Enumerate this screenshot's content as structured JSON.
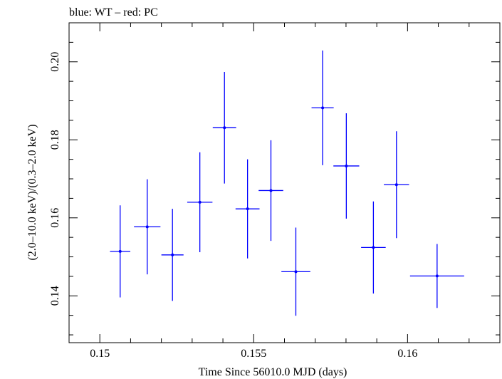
{
  "chart_data": {
    "type": "scatter",
    "title": "blue: WT – red: PC",
    "xlabel": "Time Since 56010.0 MJD (days)",
    "ylabel": "(2.0–10.0 keV)/(0.3–2.0 keV)",
    "xlim": [
      0.149,
      0.163
    ],
    "ylim": [
      0.128,
      0.21
    ],
    "xticks": [
      {
        "value": 0.15,
        "label": "0.15"
      },
      {
        "value": 0.155,
        "label": "0.155"
      },
      {
        "value": 0.16,
        "label": "0.16"
      }
    ],
    "yticks": [
      {
        "value": 0.14,
        "label": "0.14"
      },
      {
        "value": 0.16,
        "label": "0.16"
      },
      {
        "value": 0.18,
        "label": "0.18"
      },
      {
        "value": 0.2,
        "label": "0.20"
      }
    ],
    "grid": false,
    "series": [
      {
        "color": "#0000ff",
        "points": [
          {
            "x": 0.15066,
            "xerr": 0.00033,
            "y": 0.1514,
            "yerr": 0.0118
          },
          {
            "x": 0.15154,
            "xerr": 0.00043,
            "y": 0.1577,
            "yerr": 0.0122
          },
          {
            "x": 0.15236,
            "xerr": 0.00036,
            "y": 0.1505,
            "yerr": 0.0118
          },
          {
            "x": 0.15325,
            "xerr": 0.00041,
            "y": 0.164,
            "yerr": 0.0128
          },
          {
            "x": 0.15405,
            "xerr": 0.00038,
            "y": 0.1831,
            "yerr": 0.0143
          },
          {
            "x": 0.1548,
            "xerr": 0.00039,
            "y": 0.1623,
            "yerr": 0.0127
          },
          {
            "x": 0.15556,
            "xerr": 0.0004,
            "y": 0.167,
            "yerr": 0.0129
          },
          {
            "x": 0.15637,
            "xerr": 0.00047,
            "y": 0.1462,
            "yerr": 0.0113
          },
          {
            "x": 0.15724,
            "xerr": 0.00036,
            "y": 0.1882,
            "yerr": 0.0147
          },
          {
            "x": 0.15801,
            "xerr": 0.00042,
            "y": 0.1733,
            "yerr": 0.0135
          },
          {
            "x": 0.15889,
            "xerr": 0.0004,
            "y": 0.1524,
            "yerr": 0.0118
          },
          {
            "x": 0.15964,
            "xerr": 0.00041,
            "y": 0.1685,
            "yerr": 0.0137
          },
          {
            "x": 0.16096,
            "xerr": 0.00088,
            "y": 0.1451,
            "yerr": 0.0082
          }
        ]
      }
    ]
  }
}
